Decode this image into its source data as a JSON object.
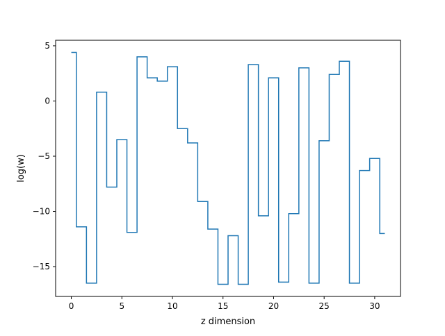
{
  "chart_data": {
    "type": "line",
    "drawstyle": "steps-mid",
    "title": "",
    "xlabel": "z dimension",
    "ylabel": "log(w)",
    "xlim": [
      -1.55,
      32.55
    ],
    "ylim": [
      -17.7,
      5.5
    ],
    "xticks": [
      0,
      5,
      10,
      15,
      20,
      25,
      30
    ],
    "xtick_labels": [
      "0",
      "5",
      "10",
      "15",
      "20",
      "25",
      "30"
    ],
    "yticks": [
      5,
      0,
      -5,
      -10,
      -15
    ],
    "ytick_labels": [
      "5",
      "0",
      "−5",
      "−10",
      "−15"
    ],
    "grid": false,
    "series": [
      {
        "color": "#1f77b4",
        "x": [
          0,
          1,
          2,
          3,
          4,
          5,
          6,
          7,
          8,
          9,
          10,
          11,
          12,
          13,
          14,
          15,
          16,
          17,
          18,
          19,
          20,
          21,
          22,
          23,
          24,
          25,
          26,
          27,
          28,
          29,
          30,
          31
        ],
        "y": [
          4.4,
          -11.4,
          -16.5,
          0.8,
          -7.8,
          -3.5,
          -11.9,
          4.0,
          2.1,
          1.8,
          3.1,
          -2.5,
          -3.8,
          -9.1,
          -11.6,
          -16.6,
          -12.2,
          -16.6,
          3.3,
          -10.4,
          2.1,
          -16.4,
          -10.2,
          3.0,
          -16.5,
          -3.6,
          2.4,
          3.6,
          -16.5,
          -6.3,
          -5.2,
          -12.0
        ]
      }
    ]
  }
}
